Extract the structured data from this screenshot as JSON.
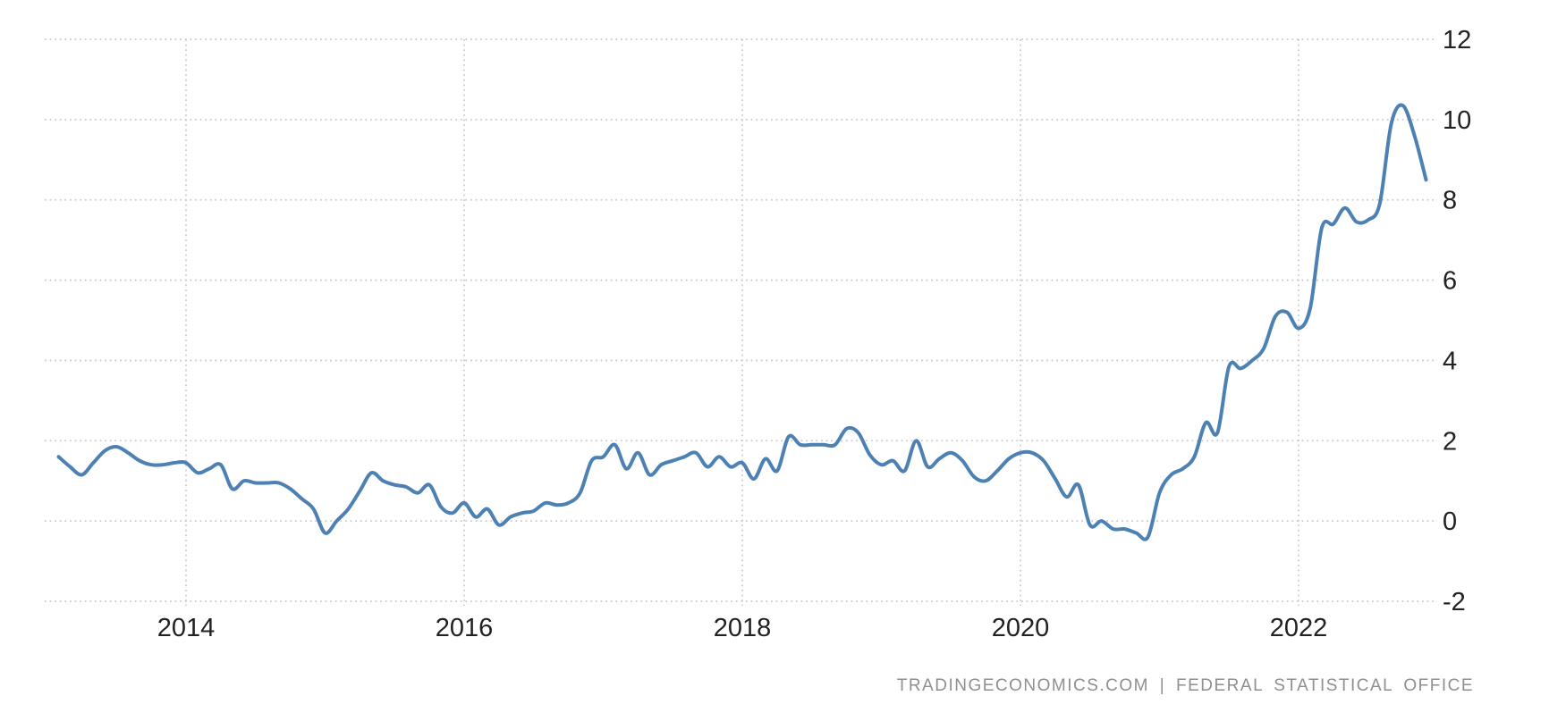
{
  "chart_data": {
    "type": "line",
    "title": "",
    "xlabel": "",
    "ylabel": "",
    "x_axis": {
      "tick_labels": [
        "2014",
        "2016",
        "2018",
        "2020",
        "2022"
      ],
      "tick_years": [
        2014,
        2016,
        2018,
        2020,
        2022
      ]
    },
    "y_axis": {
      "tick_labels": [
        "12",
        "10",
        "8",
        "6",
        "4",
        "2",
        "0",
        "-2"
      ],
      "tick_values": [
        12,
        10,
        8,
        6,
        4,
        2,
        0,
        -2
      ],
      "range": [
        -2,
        12
      ],
      "side": "right"
    },
    "grid": {
      "style": "dotted",
      "horizontal": true,
      "vertical": true
    },
    "legend": "none",
    "series": [
      {
        "name": "inflation-rate-percent-yoy",
        "frequency": "monthly",
        "start": "2013-02",
        "end": "2022-12",
        "values_by_year": {
          "2013": [
            1.6,
            1.35,
            1.15,
            1.45,
            1.75,
            1.85,
            1.7,
            1.5,
            1.4,
            1.4,
            1.45
          ],
          "2014": [
            1.45,
            1.2,
            1.3,
            1.4,
            0.8,
            1.0,
            0.95,
            0.95,
            0.95,
            0.8,
            0.55,
            0.3
          ],
          "2015": [
            -0.3,
            0.0,
            0.3,
            0.75,
            1.2,
            1.0,
            0.9,
            0.85,
            0.7,
            0.9,
            0.35,
            0.2
          ],
          "2016": [
            0.45,
            0.1,
            0.3,
            -0.1,
            0.1,
            0.2,
            0.25,
            0.45,
            0.4,
            0.45,
            0.7,
            1.5
          ],
          "2017": [
            1.6,
            1.9,
            1.3,
            1.7,
            1.15,
            1.4,
            1.5,
            1.6,
            1.7,
            1.35,
            1.6,
            1.35
          ],
          "2018": [
            1.45,
            1.05,
            1.55,
            1.25,
            2.1,
            1.9,
            1.9,
            1.9,
            1.9,
            2.3,
            2.2,
            1.65
          ],
          "2019": [
            1.4,
            1.5,
            1.25,
            2.0,
            1.35,
            1.55,
            1.7,
            1.5,
            1.1,
            1.0,
            1.25,
            1.55
          ],
          "2020": [
            1.7,
            1.7,
            1.5,
            1.05,
            0.6,
            0.9,
            -0.1,
            0.0,
            -0.2,
            -0.2,
            -0.3,
            -0.4
          ],
          "2021": [
            0.7,
            1.15,
            1.3,
            1.6,
            2.45,
            2.2,
            3.85,
            3.8,
            4.0,
            4.3,
            5.1,
            5.2
          ],
          "2022": [
            4.8,
            5.3,
            7.3,
            7.4,
            7.8,
            7.45,
            7.5,
            7.9,
            9.9,
            10.35,
            9.6,
            8.5
          ]
        }
      }
    ],
    "colors": {
      "line": "#4d81b4",
      "grid": "#cccccc",
      "tick_text": "#222222",
      "attribution_text": "#8f8f8f",
      "background": "#ffffff"
    },
    "attribution": "TRADINGECONOMICS.COM | FEDERAL STATISTICAL OFFICE"
  }
}
